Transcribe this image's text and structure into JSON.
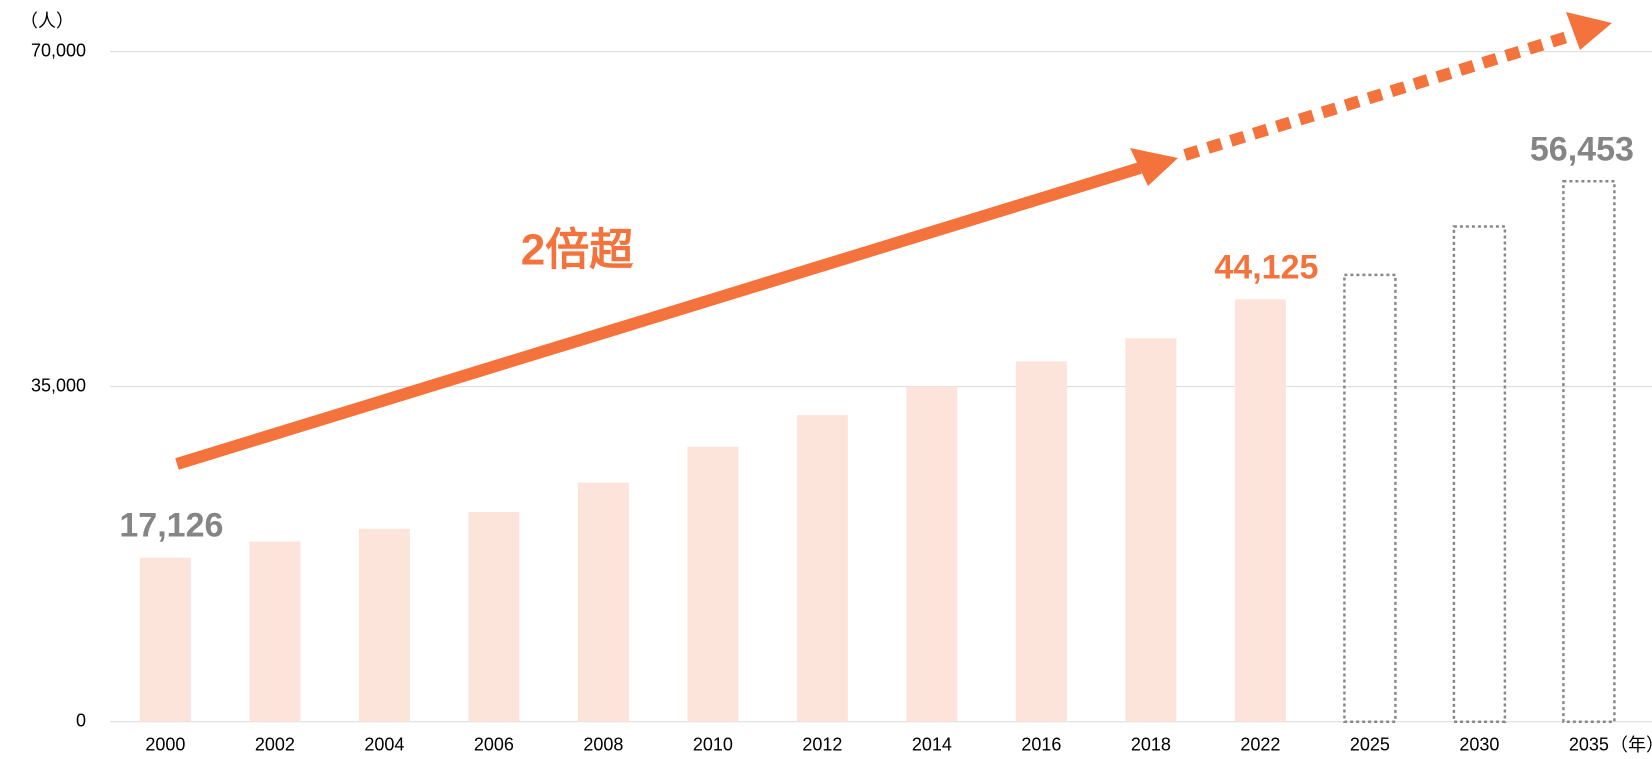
{
  "chart_data": {
    "type": "bar",
    "y_unit_label": "（人）",
    "x_unit_label": "（年）",
    "annotation": "2倍超",
    "categories": [
      "2000",
      "2002",
      "2004",
      "2006",
      "2008",
      "2010",
      "2012",
      "2014",
      "2016",
      "2018",
      "2022",
      "2025",
      "2030",
      "2035"
    ],
    "values": [
      17126,
      18820,
      20140,
      21900,
      24980,
      28730,
      32030,
      35000,
      37640,
      40060,
      44125,
      46670,
      51730,
      56453
    ],
    "value_labels": [
      "17,126",
      null,
      null,
      null,
      null,
      null,
      null,
      null,
      null,
      null,
      "44,125",
      null,
      null,
      "56,453"
    ],
    "value_label_colors": [
      "#858585",
      null,
      null,
      null,
      null,
      null,
      null,
      null,
      null,
      null,
      "#f4733c",
      null,
      null,
      "#858585"
    ],
    "fill_colors": [
      "#fce4da",
      "#fce4da",
      "#fce4da",
      "#fce4da",
      "#fce4da",
      "#fce4da",
      "#fce4da",
      "#fce4da",
      "#fce4da",
      "#fce4da",
      "#fce4da",
      "none",
      "none",
      "none"
    ],
    "stroke_colors": [
      "none",
      "none",
      "none",
      "none",
      "none",
      "none",
      "none",
      "none",
      "none",
      "none",
      "none",
      "#888888",
      "#888888",
      "#888888"
    ],
    "ylim": [
      0,
      70000
    ],
    "yticks": [
      0,
      {
        "value": 35000,
        "label": "35,000"
      },
      {
        "value": 70000,
        "label": "70,000"
      }
    ],
    "grid": true
  }
}
